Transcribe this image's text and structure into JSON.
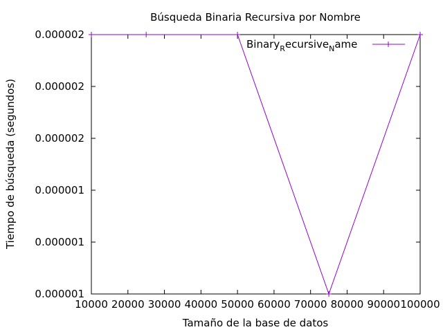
{
  "chart_data": {
    "type": "line",
    "title": "Búsqueda Binaria Recursiva por Nombre",
    "xlabel": "Tamaño de la base de datos",
    "ylabel": "Tiempo de búsqueda (segundos)",
    "xlim": [
      10000,
      100000
    ],
    "ylim": [
      1e-06,
      2e-06
    ],
    "x_ticks": [
      10000,
      20000,
      30000,
      40000,
      50000,
      60000,
      70000,
      80000,
      90000,
      100000
    ],
    "x_tick_labels": [
      "10000",
      "20000",
      "30000",
      "40000",
      "50000",
      "60000",
      "70000",
      "80000",
      "90000",
      "100000"
    ],
    "y_ticks": [
      1e-06,
      1.2e-06,
      1.4e-06,
      1.6e-06,
      1.8e-06,
      2e-06
    ],
    "y_tick_labels": [
      "0.000001",
      "0.000001",
      "0.000001",
      "0.000002",
      "0.000002",
      "0.000002"
    ],
    "grid": false,
    "legend_position": "top-right",
    "series": [
      {
        "name_main": "Binary",
        "name_sub1": "R",
        "name_mid": "ecursive",
        "name_sub2": "N",
        "name_end": "ame",
        "color": "#9400d3",
        "x": [
          10000,
          25000,
          50000,
          75000,
          100000
        ],
        "y": [
          2e-06,
          2e-06,
          2e-06,
          1e-06,
          2e-06
        ]
      }
    ]
  }
}
